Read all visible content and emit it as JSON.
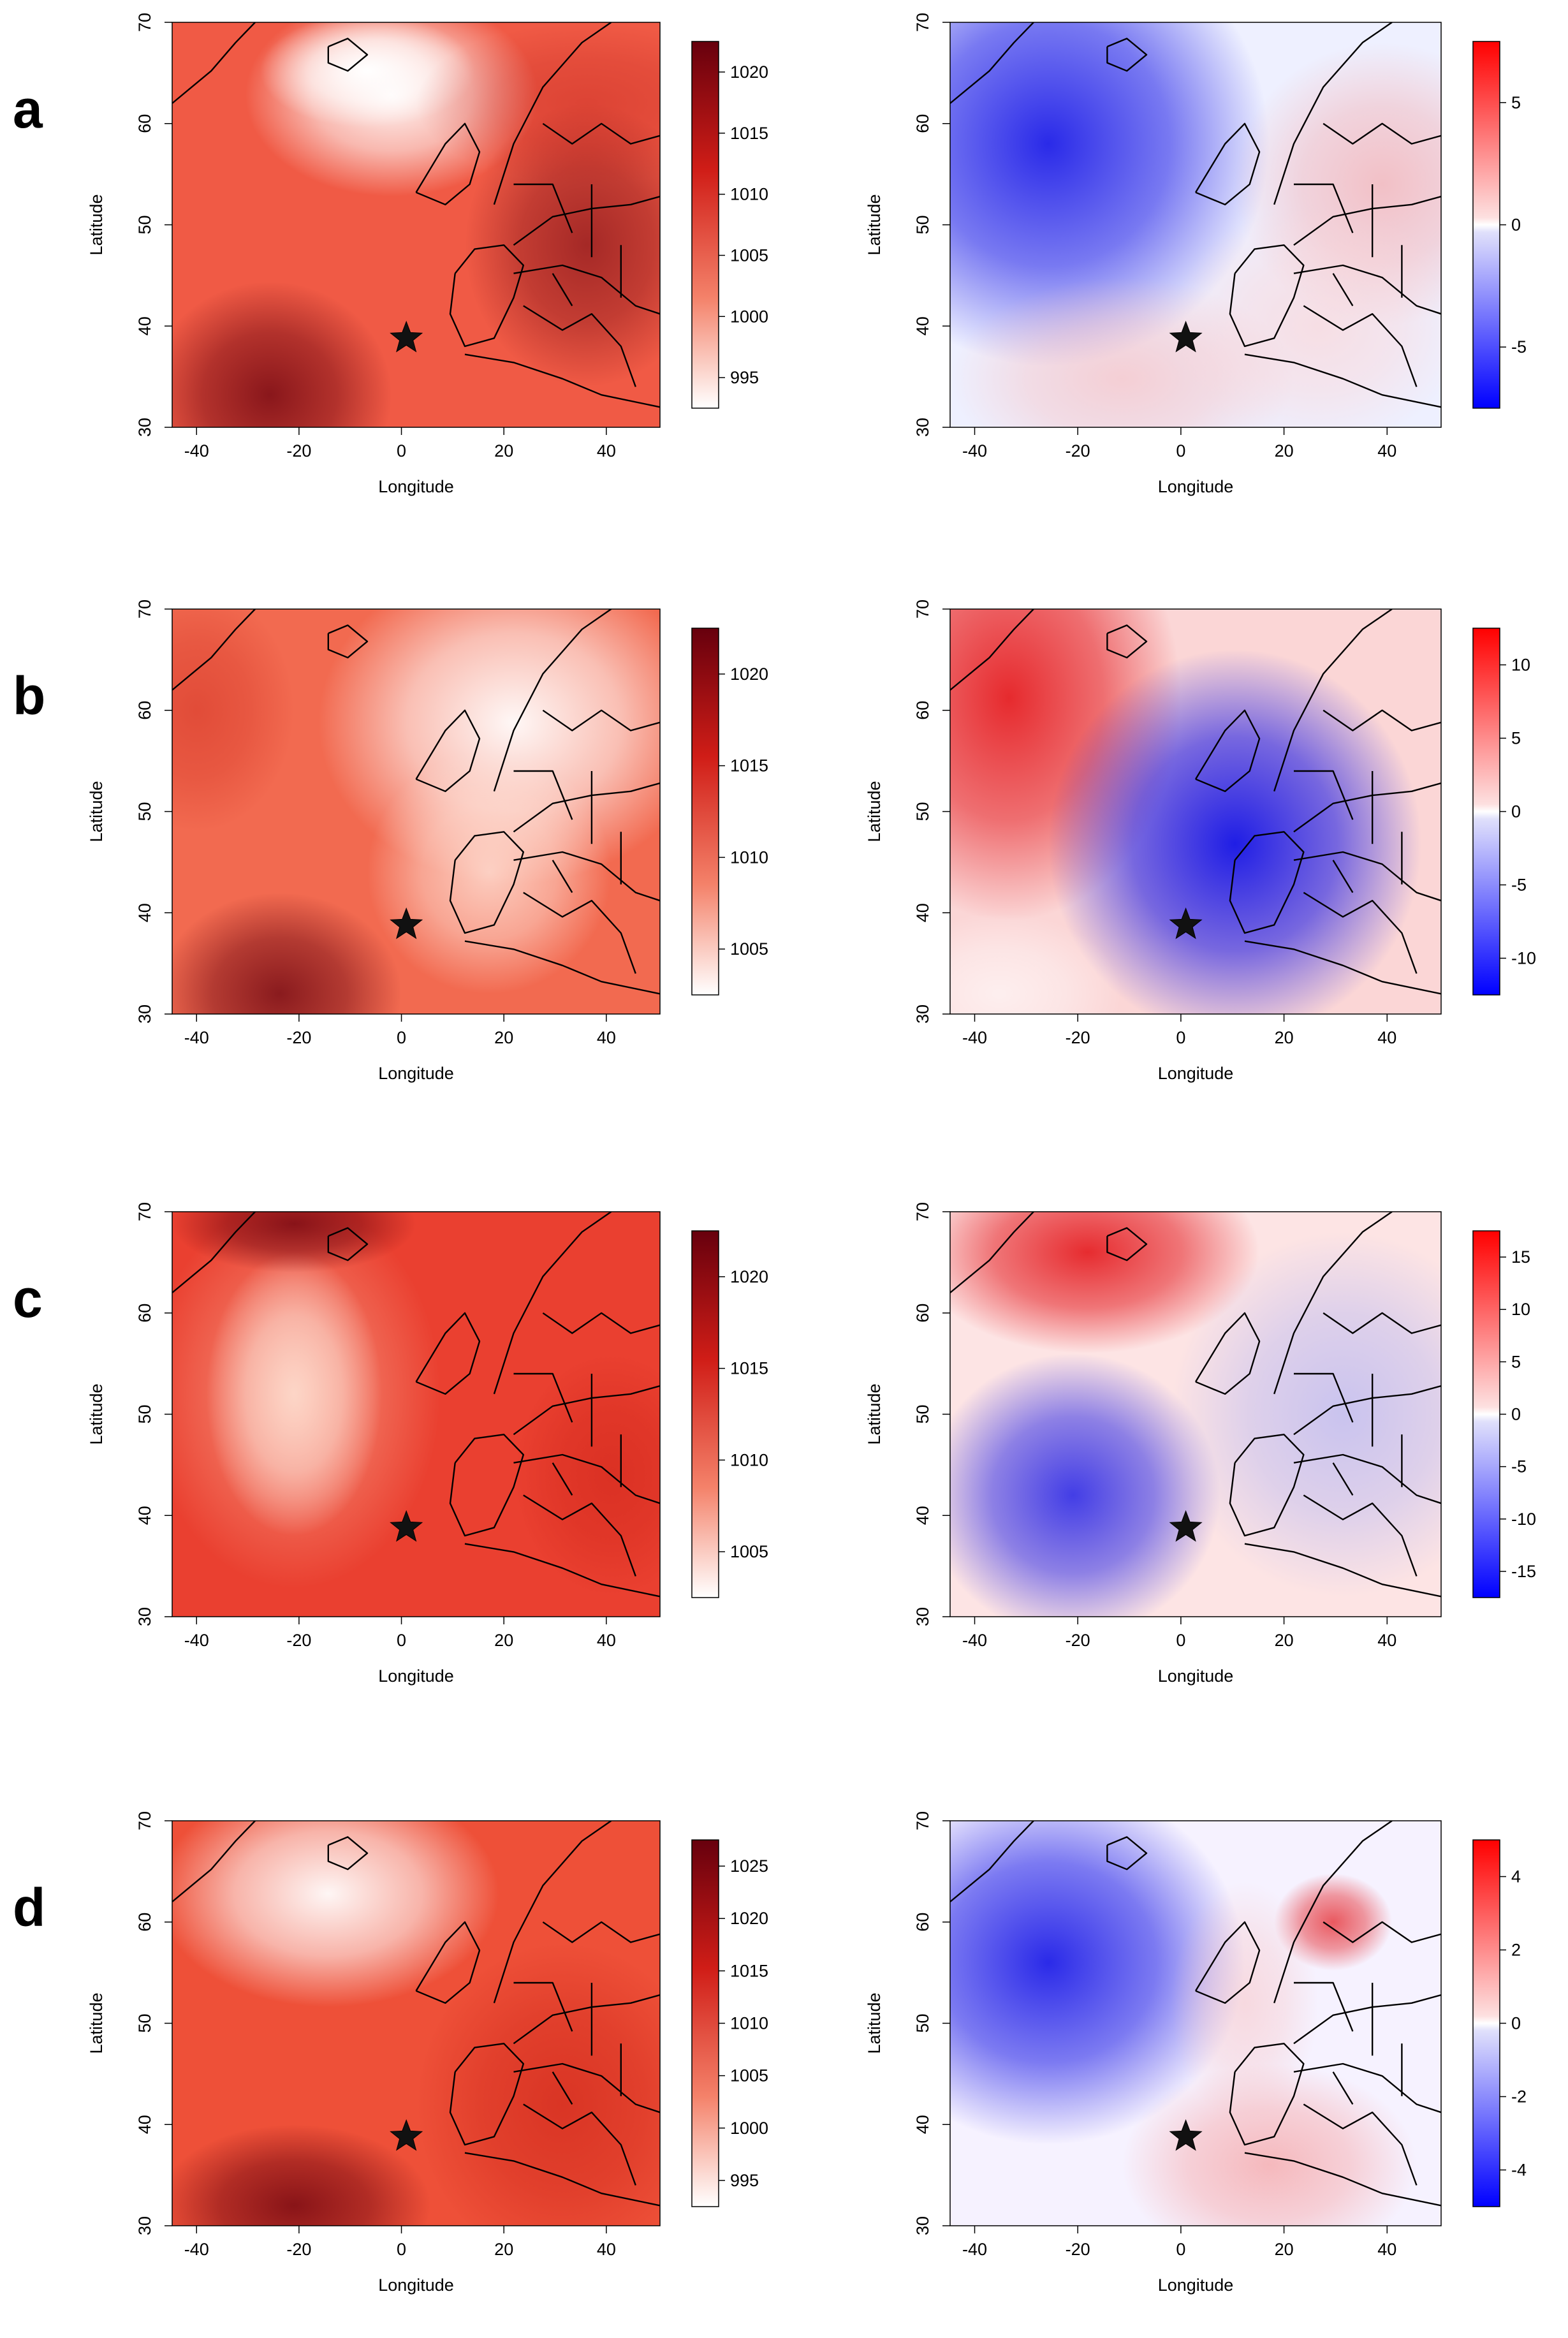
{
  "figure": {
    "rows": [
      {
        "label": "a",
        "left": {
          "legend_ticks": [
            "1020",
            "1015",
            "1010",
            "1005",
            "1000",
            "995"
          ]
        },
        "right": {
          "legend_ticks": [
            "5",
            "0",
            "-5"
          ]
        }
      },
      {
        "label": "b",
        "left": {
          "legend_ticks": [
            "1020",
            "1015",
            "1010",
            "1005"
          ]
        },
        "right": {
          "legend_ticks": [
            "10",
            "5",
            "0",
            "-5",
            "-10"
          ]
        }
      },
      {
        "label": "c",
        "left": {
          "legend_ticks": [
            "1020",
            "1015",
            "1010",
            "1005"
          ]
        },
        "right": {
          "legend_ticks": [
            "15",
            "10",
            "5",
            "0",
            "-5",
            "-10",
            "-15"
          ]
        }
      },
      {
        "label": "d",
        "left": {
          "legend_ticks": [
            "1025",
            "1020",
            "1015",
            "1010",
            "1005",
            "1000",
            "995"
          ]
        },
        "right": {
          "legend_ticks": [
            "4",
            "2",
            "0",
            "-2",
            "-4"
          ]
        }
      }
    ],
    "axes": {
      "xlabel": "Longitude",
      "ylabel": "Latitude",
      "x_ticks": [
        "-40",
        "-20",
        "0",
        "20",
        "40"
      ],
      "y_ticks": [
        "30",
        "40",
        "50",
        "60",
        "70"
      ]
    },
    "colors": {
      "red_dark": "#67000d",
      "red": "#e8311f",
      "red_light": "#fcbba1",
      "white": "#ffffff",
      "blue": "#1414e6",
      "blue_light": "#c8c8f8",
      "outline": "#000000"
    },
    "marker_icon": "star-icon"
  }
}
